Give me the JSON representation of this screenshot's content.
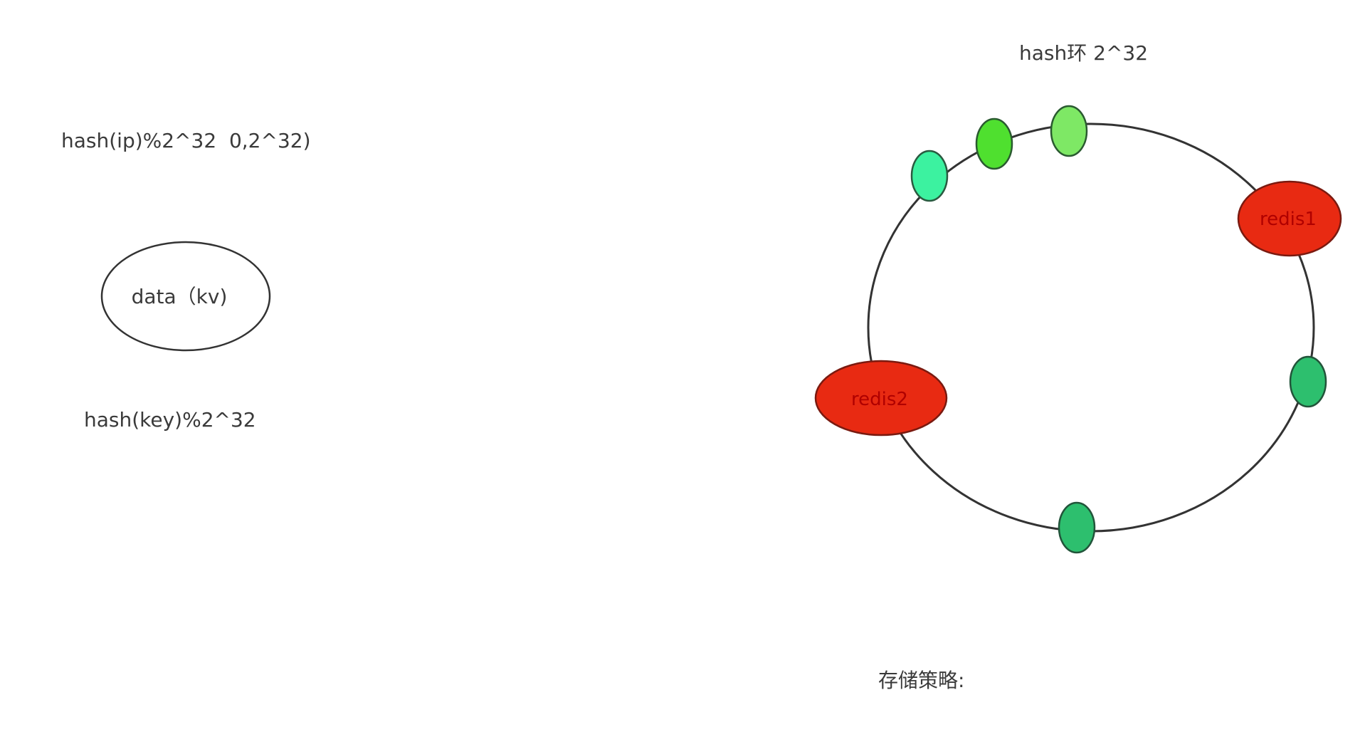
{
  "labels": {
    "hash_ip": "hash(ip)%2^32  0,2^32)",
    "hash_key": "hash(key)%2^32",
    "ring_title": "hash环 2^32",
    "storage_strategy": "存储策略:"
  },
  "data_node": {
    "label": "data（kv)"
  },
  "servers": [
    {
      "label": "redis1",
      "color": "#e82a12"
    },
    {
      "label": "redis2",
      "color": "#e82a12"
    }
  ],
  "colors": {
    "ring_stroke": "#333333",
    "server_fill": "#e82a12",
    "server_text": "#b00000",
    "virtual_node_teal": "#3cf2a0",
    "virtual_node_green": "#4fe02f",
    "virtual_node_light_green": "#7ee865",
    "virtual_node_dark_green": "#2dbf6e"
  }
}
